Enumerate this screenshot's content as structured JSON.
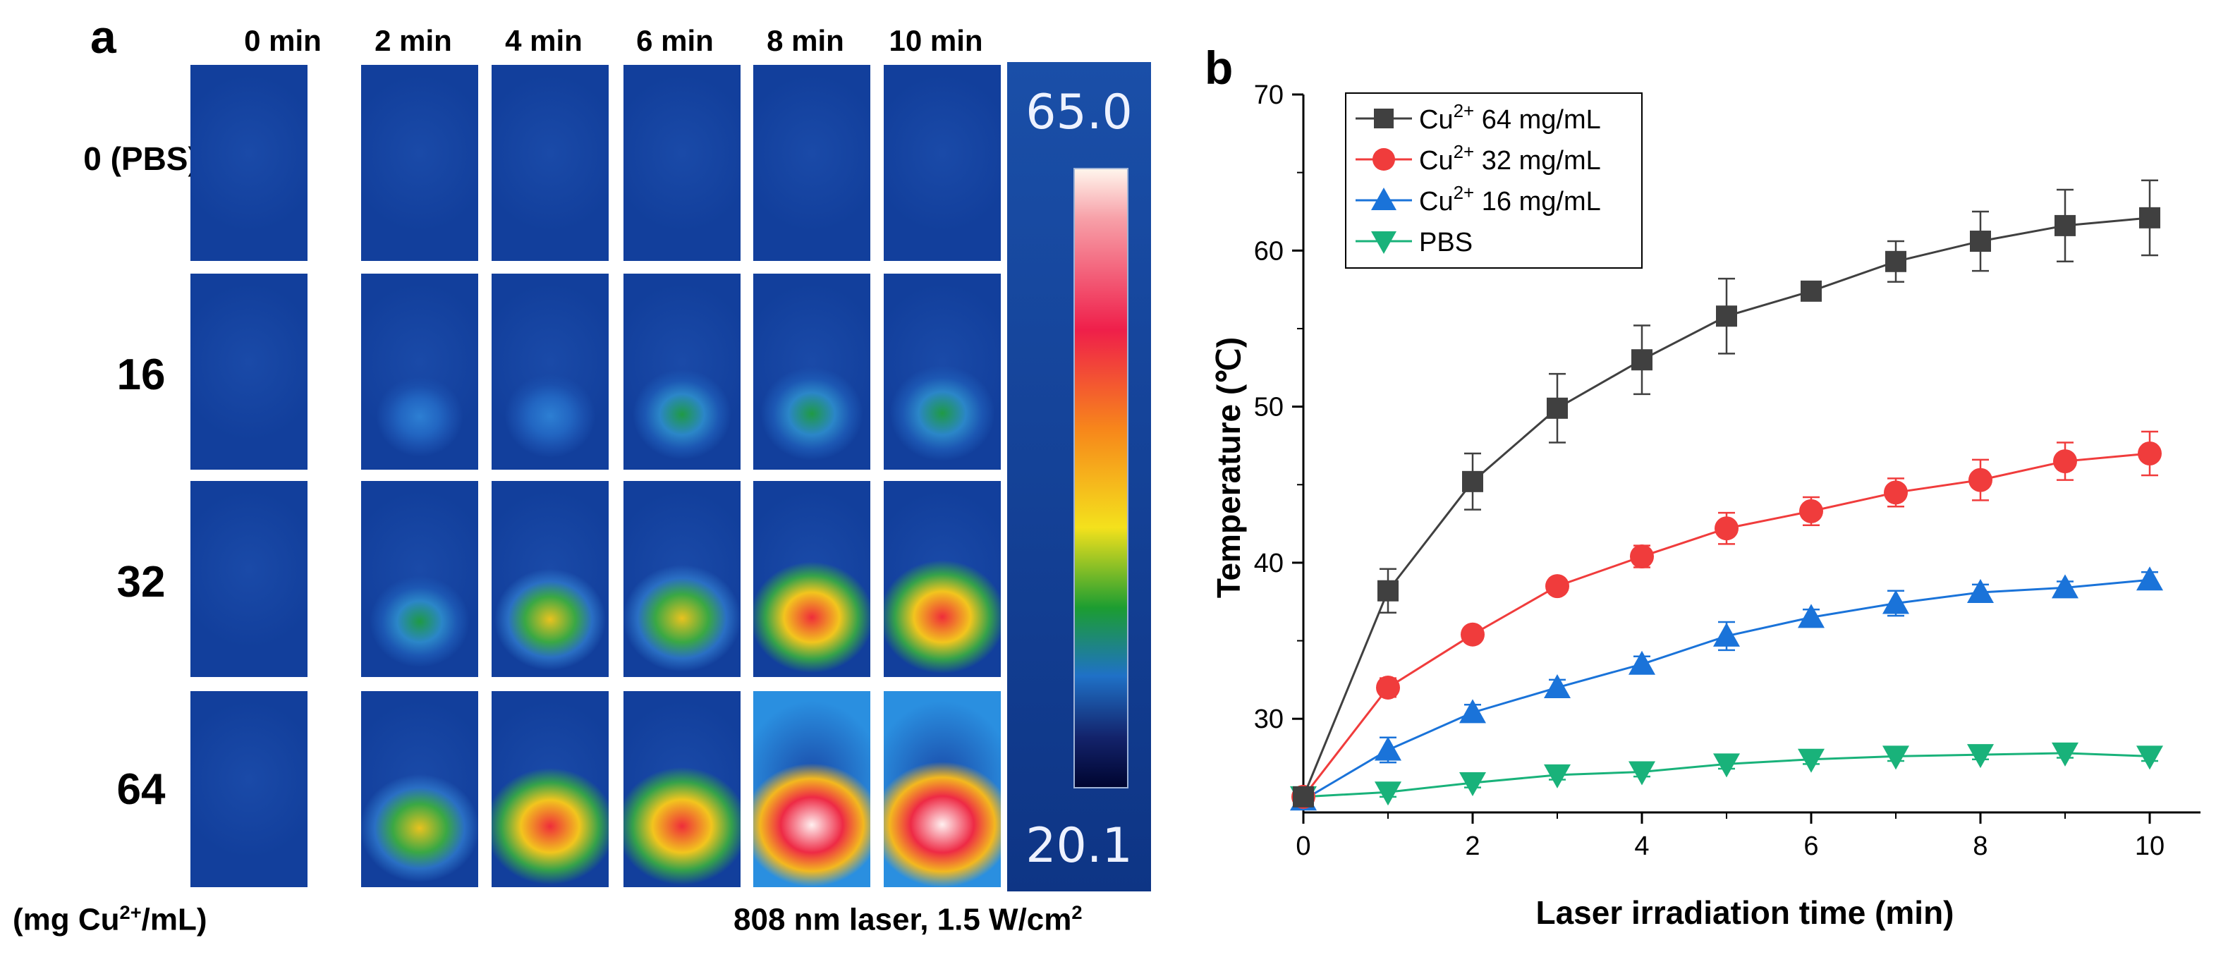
{
  "panel_a": {
    "letter": "a",
    "time_labels": [
      "0 min",
      "2 min",
      "4 min",
      "6 min",
      "8 min",
      "10 min"
    ],
    "row_labels": [
      "0 (PBS)",
      "16",
      "32",
      "64"
    ],
    "colorbar": {
      "max": "65.0",
      "min": "20.1"
    },
    "unit_label_pre": "(mg Cu",
    "unit_label_sup": "2+",
    "unit_label_post": "/mL)",
    "laser_label_pre": "808 nm laser, 1.5 W/cm",
    "laser_label_sup": "2",
    "thermal_intensity": [
      [
        0,
        0,
        0,
        0,
        0,
        0
      ],
      [
        0,
        0.18,
        0.24,
        0.36,
        0.42,
        0.46
      ],
      [
        0,
        0.38,
        0.56,
        0.66,
        0.74,
        0.78
      ],
      [
        0,
        0.68,
        0.84,
        0.86,
        0.96,
        1.0
      ]
    ],
    "colors": {
      "background": "#123f9c",
      "tile_border": "#ffffff"
    }
  },
  "chart_data": {
    "type": "line",
    "panel_letter": "b",
    "xlabel": "Laser irradiation time (min)",
    "ylabel": "Temperature (℃)",
    "x": [
      0,
      1,
      2,
      3,
      4,
      5,
      6,
      7,
      8,
      9,
      10
    ],
    "xlim": [
      0,
      10.6
    ],
    "ylim": [
      24,
      70
    ],
    "xticks": [
      0,
      2,
      4,
      6,
      8,
      10
    ],
    "yticks": [
      30,
      40,
      50,
      60,
      70
    ],
    "legend_position": "top-left",
    "series": [
      {
        "name": "Cu2+ 64 mg/mL",
        "legend_pre": "Cu",
        "legend_sup": "2+",
        "legend_post": " 64 mg/mL",
        "color": "#404040",
        "marker": "square",
        "values": [
          25.0,
          38.2,
          45.2,
          49.9,
          53.0,
          55.8,
          57.4,
          59.3,
          60.6,
          61.6,
          62.1
        ],
        "errors": [
          0.4,
          1.4,
          1.8,
          2.2,
          2.2,
          2.4,
          0.5,
          1.3,
          1.9,
          2.3,
          2.4
        ]
      },
      {
        "name": "Cu2+ 32 mg/mL",
        "legend_pre": "Cu",
        "legend_sup": "2+",
        "legend_post": " 32 mg/mL",
        "color": "#f03c3c",
        "marker": "circle",
        "values": [
          25.0,
          32.0,
          35.4,
          38.5,
          40.4,
          42.2,
          43.3,
          44.5,
          45.3,
          46.5,
          47.0
        ],
        "errors": [
          0.4,
          0.6,
          0.5,
          0.5,
          0.7,
          1.0,
          0.9,
          0.9,
          1.3,
          1.2,
          1.4
        ]
      },
      {
        "name": "Cu2+ 16 mg/mL",
        "legend_pre": "Cu",
        "legend_sup": "2+",
        "legend_post": " 16 mg/mL",
        "color": "#1a73d9",
        "marker": "triangle-up",
        "values": [
          24.8,
          28.0,
          30.4,
          32.0,
          33.5,
          35.3,
          36.5,
          37.4,
          38.1,
          38.4,
          38.9
        ],
        "errors": [
          0.5,
          0.8,
          0.5,
          0.5,
          0.5,
          0.9,
          0.5,
          0.8,
          0.5,
          0.4,
          0.5
        ]
      },
      {
        "name": "PBS",
        "legend_pre": "PBS",
        "legend_sup": "",
        "legend_post": "",
        "color": "#19b27a",
        "marker": "triangle-down",
        "values": [
          25.0,
          25.3,
          25.9,
          26.4,
          26.6,
          27.1,
          27.4,
          27.6,
          27.7,
          27.8,
          27.6
        ],
        "errors": [
          0.3,
          0.3,
          0.3,
          0.3,
          0.3,
          0.3,
          0.3,
          0.3,
          0.3,
          0.3,
          0.3
        ]
      }
    ]
  }
}
